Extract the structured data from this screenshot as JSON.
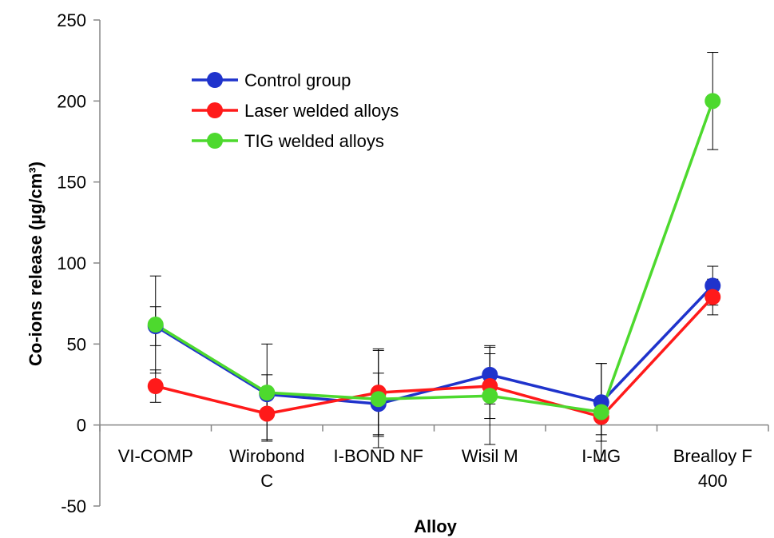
{
  "chart_data": {
    "type": "line",
    "title": "",
    "xlabel": "Alloy",
    "ylabel": "Co-ions release (µg/cm³)",
    "ylim": [
      -50,
      250
    ],
    "yticks": [
      -50,
      0,
      50,
      100,
      150,
      200,
      250
    ],
    "categories": [
      "VI-COMP",
      "Wirobond C",
      "I-BOND NF",
      "Wisil M",
      "I-MG",
      "Brealloy F 400"
    ],
    "category_lines": [
      [
        "VI-COMP"
      ],
      [
        "Wirobond",
        "C"
      ],
      [
        "I-BOND NF"
      ],
      [
        "Wisil M"
      ],
      [
        "I-MG"
      ],
      [
        "Brealloy F",
        "400"
      ]
    ],
    "grid": false,
    "legend_position": "top-left",
    "series": [
      {
        "name": "Control group",
        "color": "#1f33cc",
        "values": [
          61,
          19,
          13,
          31,
          14,
          86
        ],
        "errors": [
          12,
          12,
          19,
          18,
          24,
          12
        ]
      },
      {
        "name": "Laser welded alloys",
        "color": "#ff1a1a",
        "values": [
          24,
          7,
          20,
          24,
          5,
          79
        ],
        "errors": [
          10,
          16,
          27,
          20,
          11,
          11
        ]
      },
      {
        "name": "TIG welded alloys",
        "color": "#4dd92e",
        "values": [
          62,
          20,
          16,
          18,
          8,
          200
        ],
        "errors": [
          30,
          30,
          30,
          30,
          30,
          30
        ]
      }
    ]
  }
}
